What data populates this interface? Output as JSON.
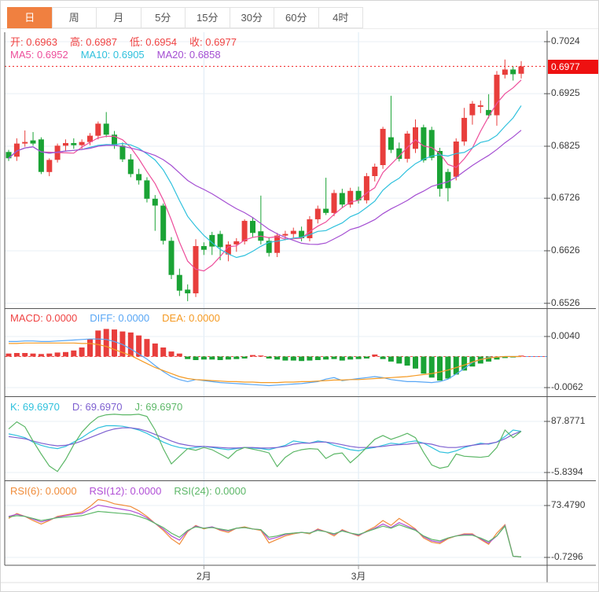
{
  "tabs": {
    "items": [
      {
        "label": "日",
        "active": true
      },
      {
        "label": "周",
        "active": false
      },
      {
        "label": "月",
        "active": false
      },
      {
        "label": "5分",
        "active": false
      },
      {
        "label": "15分",
        "active": false
      },
      {
        "label": "30分",
        "active": false
      },
      {
        "label": "60分",
        "active": false
      },
      {
        "label": "4时",
        "active": false
      }
    ]
  },
  "legends": {
    "ohlc": [
      {
        "text": "开: 0.6963",
        "color": "#ef4343"
      },
      {
        "text": "高: 0.6987",
        "color": "#ef4343"
      },
      {
        "text": "低: 0.6954",
        "color": "#ef4343"
      },
      {
        "text": "收: 0.6977",
        "color": "#ef4343"
      }
    ],
    "ma": [
      {
        "text": "MA5: 0.6952",
        "color": "#ed4e9b"
      },
      {
        "text": "MA10: 0.6905",
        "color": "#2fc1dd"
      },
      {
        "text": "MA20: 0.6858",
        "color": "#a44ed2"
      }
    ],
    "macd": [
      {
        "text": "MACD: 0.0000",
        "color": "#ef4343"
      },
      {
        "text": "DIFF: 0.0000",
        "color": "#58a6f5"
      },
      {
        "text": "DEA: 0.0000",
        "color": "#f59a23"
      }
    ],
    "kdj": [
      {
        "text": "K: 69.6970",
        "color": "#2fc1dd"
      },
      {
        "text": "D: 69.6970",
        "color": "#7d5fd0"
      },
      {
        "text": "J: 69.6970",
        "color": "#5cb767"
      }
    ],
    "rsi": [
      {
        "text": "RSI(6): 0.0000",
        "color": "#f08c3a"
      },
      {
        "text": "RSI(12): 0.0000",
        "color": "#b14fd6"
      },
      {
        "text": "RSI(24): 0.0000",
        "color": "#5cb767"
      }
    ]
  },
  "axis": {
    "last_price": "0.6977"
  },
  "colors": {
    "up": "#e83e3c",
    "down": "#1aa335",
    "dotted_price": "#f21d1d",
    "badge_bg": "#ee1111",
    "grid": "#e9eff5",
    "vgrid": "#dceaf5",
    "frame": "#555555",
    "ma5": "#ed4e9b",
    "ma10": "#2fc1dd",
    "ma20": "#a44ed2",
    "diff": "#58a6f5",
    "dea": "#f59a23",
    "k": "#2fc1dd",
    "d": "#7d5fd0",
    "j": "#5cb767",
    "rsi6": "#f08c3a",
    "rsi12": "#b14fd6",
    "rsi24": "#5cb767"
  },
  "chart_data": [
    {
      "type": "candlestick",
      "name": "main-price",
      "open": 0.6963,
      "high": 0.6987,
      "low": 0.6954,
      "close": 0.6977,
      "last_price": 0.6977,
      "ma_periods": [
        5,
        10,
        20
      ],
      "ma_values_shown": {
        "MA5": 0.6952,
        "MA10": 0.6905,
        "MA20": 0.6858
      },
      "y_ticks": [
        {
          "v": 0.7024,
          "t": "0.7024"
        },
        {
          "v": 0.6925,
          "t": "0.6925"
        },
        {
          "v": 0.6825,
          "t": "0.6825"
        },
        {
          "v": 0.6726,
          "t": "0.6726"
        },
        {
          "v": 0.6626,
          "t": "0.6626"
        },
        {
          "v": 0.6526,
          "t": "0.6526"
        }
      ],
      "month_ticks": [
        {
          "i": 24,
          "t": "2月"
        },
        {
          "i": 43,
          "t": "3月"
        }
      ],
      "ohlc": [
        [
          0.6814,
          0.6818,
          0.6797,
          0.6802
        ],
        [
          0.6805,
          0.684,
          0.6797,
          0.683
        ],
        [
          0.683,
          0.6855,
          0.6824,
          0.6833
        ],
        [
          0.6836,
          0.6852,
          0.6826,
          0.683
        ],
        [
          0.6838,
          0.6842,
          0.6772,
          0.6776
        ],
        [
          0.6776,
          0.6802,
          0.6768,
          0.6799
        ],
        [
          0.6799,
          0.683,
          0.6794,
          0.6826
        ],
        [
          0.6826,
          0.6838,
          0.6816,
          0.6831
        ],
        [
          0.6831,
          0.684,
          0.682,
          0.6827
        ],
        [
          0.6827,
          0.6838,
          0.682,
          0.6833
        ],
        [
          0.6833,
          0.685,
          0.6827,
          0.6845
        ],
        [
          0.6845,
          0.6872,
          0.6838,
          0.6868
        ],
        [
          0.6868,
          0.689,
          0.6842,
          0.6847
        ],
        [
          0.6847,
          0.6854,
          0.682,
          0.6826
        ],
        [
          0.6826,
          0.6832,
          0.6795,
          0.68
        ],
        [
          0.68,
          0.681,
          0.6766,
          0.6772
        ],
        [
          0.6772,
          0.6782,
          0.6752,
          0.676
        ],
        [
          0.676,
          0.6766,
          0.6718,
          0.6725
        ],
        [
          0.6725,
          0.6732,
          0.6664,
          0.6712
        ],
        [
          0.6712,
          0.6716,
          0.6638,
          0.6645
        ],
        [
          0.6645,
          0.6652,
          0.6572,
          0.658
        ],
        [
          0.658,
          0.6592,
          0.654,
          0.655
        ],
        [
          0.6552,
          0.6562,
          0.653,
          0.6545
        ],
        [
          0.6545,
          0.6648,
          0.6538,
          0.6635
        ],
        [
          0.6635,
          0.6642,
          0.6618,
          0.6628
        ],
        [
          0.6656,
          0.6662,
          0.6618,
          0.6634
        ],
        [
          0.6658,
          0.6664,
          0.6608,
          0.6633
        ],
        [
          0.6619,
          0.6644,
          0.6606,
          0.6638
        ],
        [
          0.6638,
          0.665,
          0.6624,
          0.6644
        ],
        [
          0.6644,
          0.6686,
          0.6638,
          0.6683
        ],
        [
          0.6683,
          0.669,
          0.6652,
          0.666
        ],
        [
          0.6663,
          0.6731,
          0.6638,
          0.6645
        ],
        [
          0.6645,
          0.6652,
          0.6615,
          0.6622
        ],
        [
          0.6622,
          0.666,
          0.6614,
          0.6655
        ],
        [
          0.6655,
          0.6664,
          0.6646,
          0.6658
        ],
        [
          0.6658,
          0.667,
          0.665,
          0.6664
        ],
        [
          0.6664,
          0.6672,
          0.6644,
          0.665
        ],
        [
          0.665,
          0.6692,
          0.6644,
          0.6686
        ],
        [
          0.6686,
          0.6712,
          0.6678,
          0.6706
        ],
        [
          0.6706,
          0.6765,
          0.6694,
          0.6698
        ],
        [
          0.6698,
          0.6742,
          0.6692,
          0.6736
        ],
        [
          0.6736,
          0.6744,
          0.6708,
          0.6714
        ],
        [
          0.6714,
          0.6746,
          0.6708,
          0.674
        ],
        [
          0.674,
          0.6748,
          0.6716,
          0.6722
        ],
        [
          0.6722,
          0.6774,
          0.6716,
          0.6768
        ],
        [
          0.6768,
          0.6792,
          0.6758,
          0.6786
        ],
        [
          0.6789,
          0.6862,
          0.6782,
          0.6858
        ],
        [
          0.6842,
          0.6921,
          0.6812,
          0.6818
        ],
        [
          0.6821,
          0.6832,
          0.6796,
          0.6801
        ],
        [
          0.6801,
          0.6854,
          0.6794,
          0.6849
        ],
        [
          0.682,
          0.6876,
          0.6812,
          0.6861
        ],
        [
          0.6861,
          0.6866,
          0.6794,
          0.6798
        ],
        [
          0.6856,
          0.6862,
          0.6798,
          0.6803
        ],
        [
          0.6816,
          0.6822,
          0.6729,
          0.6744
        ],
        [
          0.6776,
          0.6782,
          0.672,
          0.6745
        ],
        [
          0.6767,
          0.684,
          0.676,
          0.6834
        ],
        [
          0.6834,
          0.6898,
          0.6826,
          0.6879
        ],
        [
          0.6884,
          0.6911,
          0.6866,
          0.6906
        ],
        [
          0.69,
          0.6912,
          0.6888,
          0.6903
        ],
        [
          0.6894,
          0.6924,
          0.6878,
          0.6884
        ],
        [
          0.6884,
          0.6968,
          0.6864,
          0.6961
        ],
        [
          0.6961,
          0.699,
          0.6954,
          0.6971
        ],
        [
          0.6971,
          0.6977,
          0.695,
          0.6962
        ],
        [
          0.6963,
          0.6987,
          0.6954,
          0.6977
        ]
      ]
    },
    {
      "type": "bar",
      "name": "MACD",
      "macd": 0.0,
      "diff_last": 0.0,
      "dea_last": 0.0,
      "y_ticks": [
        {
          "v": 0.004,
          "t": "0.0040"
        },
        {
          "v": -0.0062,
          "t": "-0.0062"
        }
      ],
      "hist": [
        0.0006,
        0.0007,
        0.0007,
        0.0006,
        0.0005,
        0.0006,
        0.0008,
        0.0009,
        0.0012,
        0.0018,
        0.0035,
        0.0052,
        0.0055,
        0.0054,
        0.005,
        0.0048,
        0.0042,
        0.0035,
        0.0026,
        0.0018,
        0.001,
        0.0006,
        -0.0005,
        -0.0007,
        -0.0006,
        -0.0006,
        -0.0007,
        -0.0006,
        -0.0005,
        -0.0004,
        0.0003,
        0.0002,
        -0.0004,
        -0.0006,
        -0.0008,
        -0.0008,
        -0.0009,
        -0.0008,
        -0.0007,
        -0.0006,
        -0.0005,
        -0.0008,
        -0.0006,
        -0.0005,
        -0.0004,
        0.0004,
        -0.0005,
        -0.001,
        -0.0014,
        -0.0018,
        -0.0024,
        -0.0034,
        -0.0042,
        -0.0048,
        -0.0044,
        -0.0036,
        -0.0028,
        -0.002,
        -0.0014,
        -0.001,
        -0.0006,
        -0.0003,
        -0.0001,
        0.0
      ],
      "diff": [
        0.003,
        0.003,
        0.0031,
        0.0031,
        0.003,
        0.003,
        0.0031,
        0.0032,
        0.0033,
        0.0034,
        0.0035,
        0.0035,
        0.0034,
        0.003,
        0.0024,
        0.0015,
        0.0005,
        -0.0005,
        -0.0018,
        -0.003,
        -0.004,
        -0.0046,
        -0.005,
        -0.0046,
        -0.0048,
        -0.005,
        -0.0052,
        -0.0053,
        -0.0054,
        -0.0055,
        -0.0056,
        -0.0057,
        -0.0058,
        -0.0057,
        -0.0056,
        -0.0055,
        -0.0054,
        -0.0052,
        -0.005,
        -0.0045,
        -0.0042,
        -0.0048,
        -0.0046,
        -0.0044,
        -0.0042,
        -0.004,
        -0.0042,
        -0.0046,
        -0.0048,
        -0.005,
        -0.005,
        -0.0051,
        -0.0052,
        -0.005,
        -0.0045,
        -0.0035,
        -0.0024,
        -0.0012,
        -0.0006,
        -0.0002,
        -0.0001,
        0.0,
        0.0,
        0.0
      ],
      "dea": [
        0.0026,
        0.0026,
        0.0027,
        0.0027,
        0.0027,
        0.0027,
        0.0027,
        0.0027,
        0.0027,
        0.0026,
        0.0026,
        0.0024,
        0.002,
        0.0014,
        0.0008,
        0.0002,
        -0.0006,
        -0.0014,
        -0.0022,
        -0.0028,
        -0.0034,
        -0.004,
        -0.0044,
        -0.0046,
        -0.0047,
        -0.0048,
        -0.0049,
        -0.005,
        -0.005,
        -0.0051,
        -0.0051,
        -0.0052,
        -0.0052,
        -0.0052,
        -0.0051,
        -0.0051,
        -0.005,
        -0.005,
        -0.0049,
        -0.0048,
        -0.0047,
        -0.0047,
        -0.0046,
        -0.0046,
        -0.0045,
        -0.0044,
        -0.0043,
        -0.0042,
        -0.0041,
        -0.004,
        -0.0038,
        -0.0036,
        -0.0034,
        -0.0031,
        -0.0027,
        -0.0022,
        -0.0017,
        -0.0011,
        -0.0006,
        -0.0003,
        -0.0001,
        0.0,
        0.0,
        0.0
      ]
    },
    {
      "type": "line",
      "name": "KDJ",
      "k_last": 69.697,
      "d_last": 69.697,
      "j_last": 69.697,
      "y_ticks": [
        {
          "v": 87.8771,
          "t": "87.8771"
        },
        {
          "v": -5.8394,
          "t": "-5.8394"
        }
      ],
      "series": [
        {
          "name": "K",
          "values": [
            65,
            62,
            58,
            50,
            44,
            40,
            38,
            42,
            50,
            58,
            68,
            76,
            80,
            80,
            79,
            76,
            72,
            66,
            58,
            50,
            44,
            40,
            38,
            40,
            42,
            40,
            38,
            36,
            38,
            40,
            39,
            38,
            36,
            40,
            44,
            52,
            50,
            48,
            52,
            50,
            44,
            40,
            36,
            34,
            38,
            40,
            44,
            48,
            46,
            50,
            52,
            48,
            40,
            32,
            30,
            34,
            40,
            44,
            48,
            46,
            50,
            60,
            72,
            69.7
          ]
        },
        {
          "name": "D",
          "values": [
            60,
            58,
            56,
            52,
            48,
            45,
            43,
            44,
            47,
            52,
            58,
            64,
            70,
            74,
            76,
            76,
            74,
            70,
            64,
            58,
            52,
            47,
            44,
            42,
            42,
            41,
            40,
            39,
            39,
            40,
            40,
            39,
            39,
            40,
            42,
            46,
            48,
            48,
            50,
            50,
            48,
            45,
            42,
            40,
            40,
            41,
            42,
            44,
            45,
            46,
            48,
            48,
            46,
            42,
            40,
            40,
            42,
            44,
            46,
            47,
            50,
            56,
            64,
            69.7
          ]
        },
        {
          "name": "J",
          "values": [
            74,
            87,
            78,
            52,
            28,
            6,
            -4,
            18,
            45,
            68,
            84,
            96,
            100,
            101,
            100,
            100,
            101,
            97,
            72,
            38,
            10,
            24,
            38,
            35,
            40,
            36,
            28,
            20,
            34,
            40,
            37,
            34,
            30,
            5,
            22,
            32,
            36,
            38,
            37,
            20,
            28,
            30,
            12,
            25,
            40,
            55,
            62,
            55,
            60,
            66,
            58,
            31,
            8,
            2,
            5,
            28,
            24,
            23,
            22,
            24,
            40,
            72,
            58,
            69.7
          ]
        }
      ]
    },
    {
      "type": "line",
      "name": "RSI",
      "rsi6_last": 0.0,
      "rsi12_last": 0.0,
      "rsi24_last": 0.0,
      "y_ticks": [
        {
          "v": 73.479,
          "t": "73.4790"
        },
        {
          "v": -0.7296,
          "t": "-0.7296"
        }
      ],
      "series": [
        {
          "name": "RSI6",
          "values": [
            55,
            62,
            58,
            52,
            47,
            52,
            58,
            60,
            62,
            64,
            72,
            82,
            80,
            76,
            74,
            72,
            66,
            58,
            48,
            38,
            26,
            18,
            36,
            45,
            40,
            43,
            38,
            35,
            41,
            43,
            40,
            38,
            20,
            25,
            30,
            33,
            35,
            33,
            40,
            36,
            30,
            39,
            34,
            30,
            37,
            43,
            52,
            45,
            55,
            48,
            40,
            27,
            21,
            19,
            26,
            30,
            33,
            33,
            25,
            18,
            34,
            46,
            1,
            0
          ]
        },
        {
          "name": "RSI12",
          "values": [
            58,
            61,
            58,
            54,
            50,
            53,
            57,
            59,
            61,
            62,
            68,
            74,
            72,
            70,
            68,
            66,
            62,
            56,
            48,
            40,
            30,
            24,
            37,
            44,
            41,
            43,
            39,
            37,
            41,
            42,
            40,
            39,
            25,
            28,
            32,
            34,
            35,
            34,
            39,
            36,
            32,
            38,
            34,
            31,
            36,
            41,
            47,
            42,
            49,
            44,
            39,
            29,
            23,
            21,
            27,
            30,
            32,
            32,
            26,
            20,
            30,
            45,
            1,
            0
          ]
        },
        {
          "name": "RSI24",
          "values": [
            57,
            59,
            58,
            55,
            52,
            54,
            56,
            57,
            58,
            59,
            62,
            65,
            64,
            63,
            62,
            61,
            58,
            54,
            48,
            42,
            34,
            28,
            38,
            43,
            41,
            42,
            40,
            38,
            41,
            42,
            40,
            39,
            28,
            30,
            33,
            34,
            35,
            34,
            38,
            36,
            33,
            37,
            34,
            32,
            36,
            40,
            44,
            41,
            46,
            42,
            38,
            30,
            25,
            23,
            27,
            30,
            31,
            31,
            27,
            22,
            30,
            44,
            1,
            0
          ]
        }
      ]
    }
  ]
}
